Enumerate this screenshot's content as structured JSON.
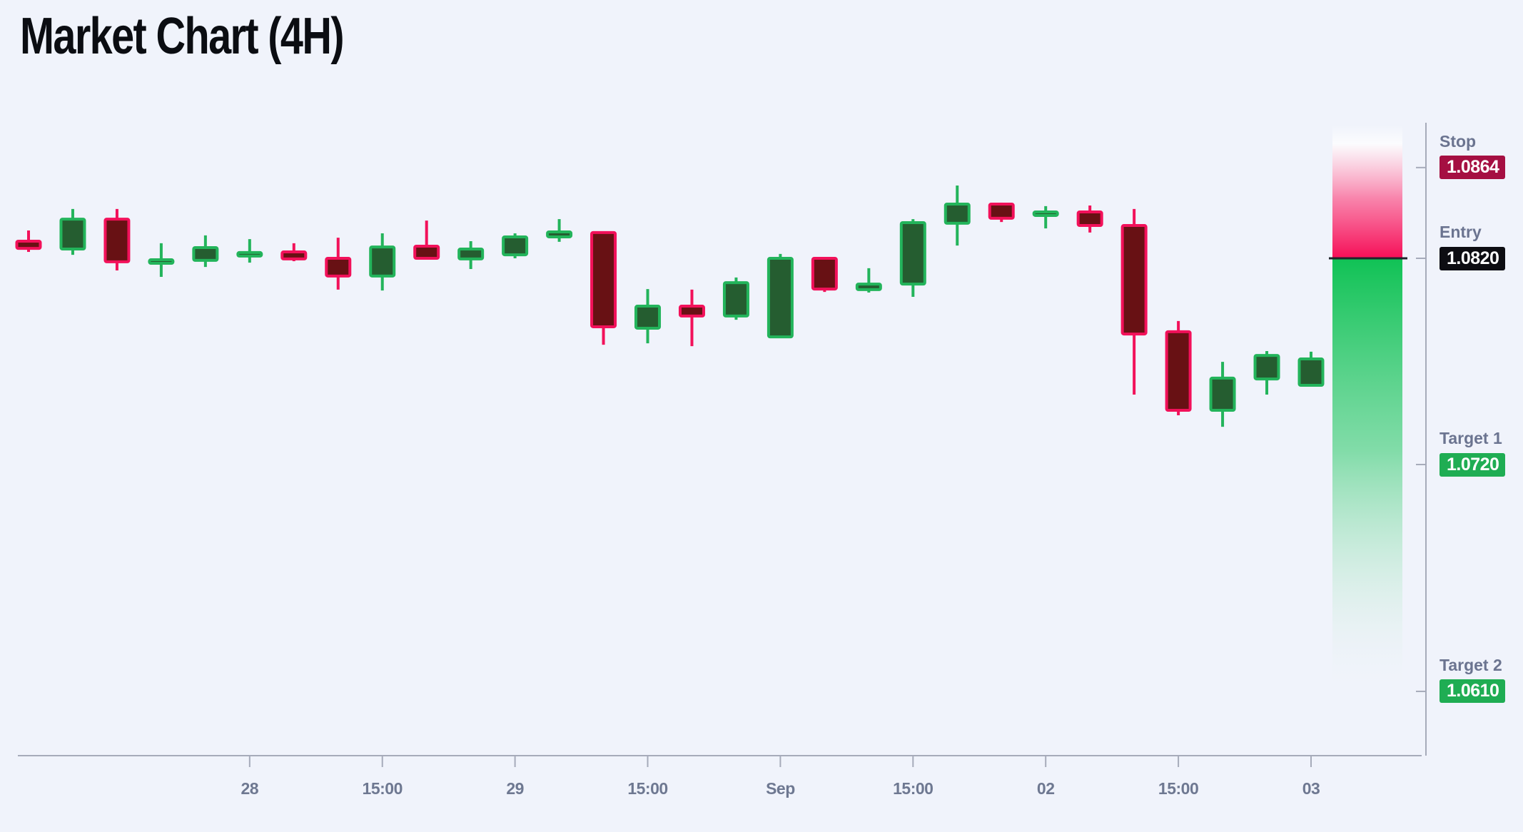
{
  "title": "Market Chart (4H)",
  "colors": {
    "background": "#f0f3fb",
    "up_border": "#23b45b",
    "up_fill": "#255d30",
    "down_border": "#f2115a",
    "down_fill": "#681114",
    "axis_line": "#a6abba",
    "x_tick_text": "#6e7891",
    "level_label_text": "#6b7490",
    "entry_line": "#20242b",
    "risk_gradient": "#f60e57",
    "reward_gradient": "#10c255"
  },
  "chart_data": {
    "type": "candlestick",
    "title": "Market Chart (4H)",
    "timeframe": "4H",
    "ylim": [
      1.06,
      1.089
    ],
    "x_axis": {
      "tick_labels": [
        {
          "candle_index": 5,
          "label": "28"
        },
        {
          "candle_index": 8,
          "label": "15:00"
        },
        {
          "candle_index": 11,
          "label": "29"
        },
        {
          "candle_index": 14,
          "label": "15:00"
        },
        {
          "candle_index": 17,
          "label": "Sep"
        },
        {
          "candle_index": 20,
          "label": "15:00"
        },
        {
          "candle_index": 23,
          "label": "02"
        },
        {
          "candle_index": 26,
          "label": "15:00"
        },
        {
          "candle_index": 29,
          "label": "03"
        }
      ]
    },
    "candles": [
      {
        "open": 1.08283,
        "high": 1.08335,
        "low": 1.08231,
        "close": 1.08248
      },
      {
        "open": 1.08245,
        "high": 1.08439,
        "low": 1.08217,
        "close": 1.0839
      },
      {
        "open": 1.0839,
        "high": 1.08439,
        "low": 1.08141,
        "close": 1.08183
      },
      {
        "open": 1.08179,
        "high": 1.08273,
        "low": 1.0811,
        "close": 1.08193
      },
      {
        "open": 1.0819,
        "high": 1.08311,
        "low": 1.08158,
        "close": 1.08252
      },
      {
        "open": 1.08214,
        "high": 1.08293,
        "low": 1.08179,
        "close": 1.08228
      },
      {
        "open": 1.08231,
        "high": 1.08273,
        "low": 1.08186,
        "close": 1.08197
      },
      {
        "open": 1.082,
        "high": 1.083,
        "low": 1.08048,
        "close": 1.08114
      },
      {
        "open": 1.08114,
        "high": 1.08321,
        "low": 1.08044,
        "close": 1.08255
      },
      {
        "open": 1.08259,
        "high": 1.08383,
        "low": 1.08193,
        "close": 1.082
      },
      {
        "open": 1.08197,
        "high": 1.08283,
        "low": 1.08148,
        "close": 1.08245
      },
      {
        "open": 1.08217,
        "high": 1.08321,
        "low": 1.082,
        "close": 1.08304
      },
      {
        "open": 1.08304,
        "high": 1.0839,
        "low": 1.0828,
        "close": 1.08328
      },
      {
        "open": 1.08325,
        "high": 1.08325,
        "low": 1.07781,
        "close": 1.07868
      },
      {
        "open": 1.07861,
        "high": 1.08051,
        "low": 1.07788,
        "close": 1.07968
      },
      {
        "open": 1.07968,
        "high": 1.08048,
        "low": 1.07774,
        "close": 1.0792
      },
      {
        "open": 1.0792,
        "high": 1.08107,
        "low": 1.07902,
        "close": 1.08082
      },
      {
        "open": 1.07819,
        "high": 1.08221,
        "low": 1.07819,
        "close": 1.082
      },
      {
        "open": 1.082,
        "high": 1.082,
        "low": 1.08037,
        "close": 1.08051
      },
      {
        "open": 1.08048,
        "high": 1.08152,
        "low": 1.08034,
        "close": 1.08075
      },
      {
        "open": 1.08075,
        "high": 1.0839,
        "low": 1.08013,
        "close": 1.08373
      },
      {
        "open": 1.0837,
        "high": 1.08553,
        "low": 1.08262,
        "close": 1.08463
      },
      {
        "open": 1.08463,
        "high": 1.0847,
        "low": 1.08376,
        "close": 1.08394
      },
      {
        "open": 1.08411,
        "high": 1.08453,
        "low": 1.08345,
        "close": 1.08425
      },
      {
        "open": 1.08425,
        "high": 1.08456,
        "low": 1.08325,
        "close": 1.08359
      },
      {
        "open": 1.08359,
        "high": 1.08439,
        "low": 1.07539,
        "close": 1.07833
      },
      {
        "open": 1.07844,
        "high": 1.07896,
        "low": 1.07439,
        "close": 1.07463
      },
      {
        "open": 1.07463,
        "high": 1.07698,
        "low": 1.07383,
        "close": 1.07619
      },
      {
        "open": 1.07615,
        "high": 1.0775,
        "low": 1.07539,
        "close": 1.07729
      },
      {
        "open": 1.07584,
        "high": 1.07747,
        "low": 1.07584,
        "close": 1.07712
      }
    ],
    "levels": [
      {
        "id": "stop",
        "label": "Stop",
        "value": "1.0864",
        "price": 1.0864,
        "badge_color": "#a50f42",
        "text_color": "#ffffff"
      },
      {
        "id": "entry",
        "label": "Entry",
        "value": "1.0820",
        "price": 1.082,
        "badge_color": "#0d0d12",
        "text_color": "#ffffff"
      },
      {
        "id": "target1",
        "label": "Target 1",
        "value": "1.0720",
        "price": 1.072,
        "badge_color": "#1fad53",
        "text_color": "#ffffff"
      },
      {
        "id": "target2",
        "label": "Target 2",
        "value": "1.0610",
        "price": 1.061,
        "badge_color": "#1fad53",
        "text_color": "#ffffff"
      }
    ],
    "zones": {
      "risk": {
        "from": 1.082,
        "to": 1.0885
      },
      "reward": {
        "from": 1.0613,
        "to": 1.082
      }
    }
  }
}
